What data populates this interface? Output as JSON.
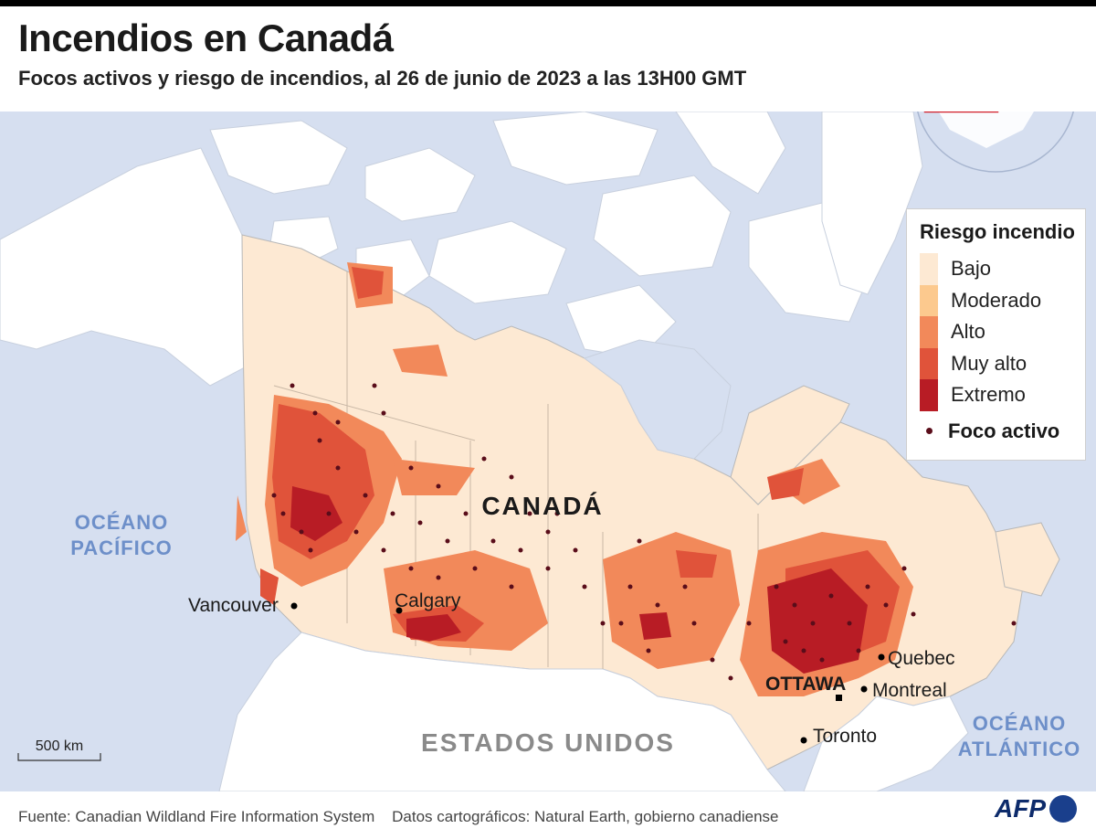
{
  "header": {
    "title": "Incendios en Canadá",
    "subtitle": "Focos activos y riesgo de incendios, al 26 de junio de 2023 a las 13H00 GMT"
  },
  "map": {
    "country_label": "CANADÁ",
    "neighbor_label": "ESTADOS UNIDOS",
    "ocean_pacific": [
      "OCÉANO",
      "PACÍFICO"
    ],
    "ocean_atlantic": [
      "OCÉANO",
      "ATLÁNTICO"
    ],
    "capital": "OTTAWA",
    "cities": [
      "Vancouver",
      "Calgary",
      "Quebec",
      "Montreal",
      "Toronto"
    ],
    "scale_label": "500 km"
  },
  "legend": {
    "title": "Riesgo incendio",
    "levels": [
      {
        "label": "Bajo",
        "color": "#fde9d3"
      },
      {
        "label": "Moderado",
        "color": "#fcc98e"
      },
      {
        "label": "Alto",
        "color": "#f2895a"
      },
      {
        "label": "Muy alto",
        "color": "#e0533a"
      },
      {
        "label": "Extremo",
        "color": "#b81c25"
      }
    ],
    "active_fire_label": "Foco activo",
    "active_fire_color": "#5a0d1a"
  },
  "colors": {
    "water": "#d6dff0",
    "land": "#ffffff",
    "border": "#b8b8b8",
    "ocean_label": "#6d8fc9"
  },
  "footer": {
    "source": "Fuente: Canadian Wildland Fire Information System    Datos cartográficos: Natural Earth, gobierno canadiense",
    "logo": "AFP"
  }
}
